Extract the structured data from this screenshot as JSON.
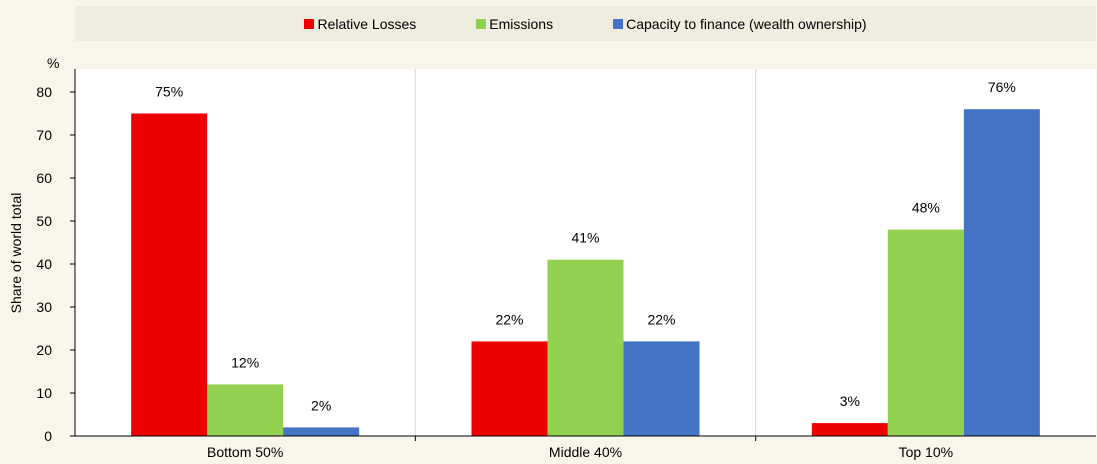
{
  "chart_data": {
    "type": "bar",
    "unit_label": "%",
    "ylabel": "Share of world total",
    "xlabel": "",
    "ylim": [
      0,
      80
    ],
    "yticks": [
      0,
      10,
      20,
      30,
      40,
      50,
      60,
      70,
      80
    ],
    "categories": [
      "Bottom 50%",
      "Middle 40%",
      "Top 10%"
    ],
    "series": [
      {
        "name": "Relative Losses",
        "color": "#ee0000",
        "values": [
          75,
          22,
          3
        ],
        "labels": [
          "75%",
          "22%",
          "3%"
        ]
      },
      {
        "name": "Emissions",
        "color": "#92d050",
        "values": [
          12,
          41,
          48
        ],
        "labels": [
          "12%",
          "41%",
          "48%"
        ]
      },
      {
        "name": "Capacity to finance (wealth ownership)",
        "color": "#4472c4",
        "values": [
          2,
          22,
          76
        ],
        "labels": [
          "2%",
          "22%",
          "76%"
        ]
      }
    ],
    "legend": "top",
    "grid": "vertical separators between categories"
  }
}
